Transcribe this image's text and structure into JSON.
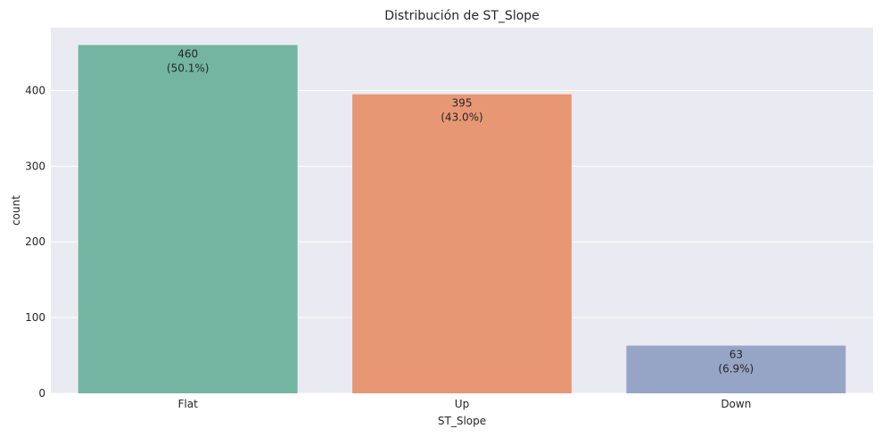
{
  "chart_data": {
    "type": "bar",
    "title": "Distribución de ST_Slope",
    "xlabel": "ST_Slope",
    "ylabel": "count",
    "categories": [
      "Flat",
      "Up",
      "Down"
    ],
    "values": [
      460,
      395,
      63
    ],
    "bar_labels": [
      [
        "460",
        "(50.1%)"
      ],
      [
        "395",
        "(43.0%)"
      ],
      [
        "63",
        "(6.9%)"
      ]
    ],
    "colors": [
      "#73b5a0",
      "#e89774",
      "#96a5c5"
    ],
    "ylim": [
      0,
      483
    ],
    "yticks": [
      0,
      100,
      200,
      300,
      400
    ],
    "grid": true,
    "background": "#eaeaf2",
    "legend": false
  }
}
